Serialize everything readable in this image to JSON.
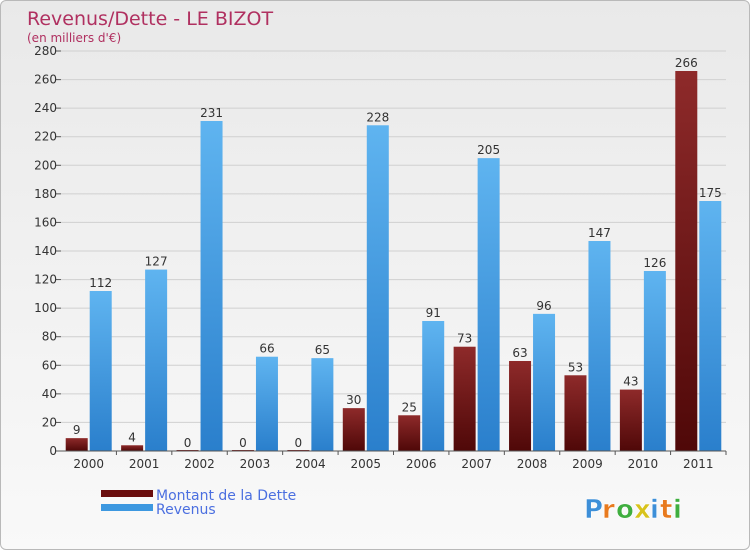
{
  "chart_data": {
    "type": "bar",
    "title": "Revenus/Dette - LE BIZOT",
    "subtitle": "(en milliers d'€)",
    "categories": [
      "2000",
      "2001",
      "2002",
      "2003",
      "2004",
      "2005",
      "2006",
      "2007",
      "2008",
      "2009",
      "2010",
      "2011"
    ],
    "series": [
      {
        "name": "Montant de la Dette",
        "color": "#7a1a1a",
        "values": [
          9,
          4,
          0,
          0,
          0,
          30,
          25,
          73,
          63,
          53,
          43,
          266
        ]
      },
      {
        "name": "Revenus",
        "color": "#3d98e0",
        "values": [
          112,
          127,
          231,
          66,
          65,
          228,
          91,
          205,
          96,
          147,
          126,
          175
        ]
      }
    ],
    "ylim": [
      0,
      280
    ],
    "yticks": [
      0,
      20,
      40,
      60,
      80,
      100,
      120,
      140,
      160,
      180,
      200,
      220,
      240,
      260,
      280
    ],
    "grid": true,
    "legend_position": "bottom-left"
  },
  "watermark": "Proxiti"
}
